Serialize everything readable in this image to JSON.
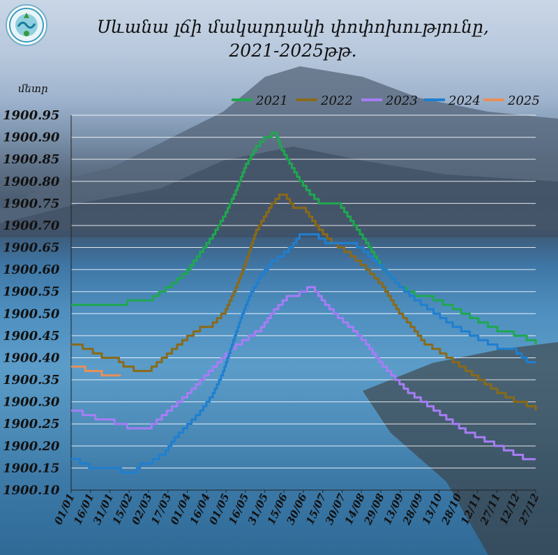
{
  "header": {
    "title_line1": "Սևանա լճի մակարդակի փոփոխությունը,",
    "title_line2": "2021-2025թթ.",
    "logo_icon": "ministry-logo-icon"
  },
  "chart_data": {
    "type": "line",
    "ylabel": "մետր",
    "ylim": [
      1900.1,
      1900.95
    ],
    "yticks": [
      "1900.95",
      "1900.90",
      "1900.85",
      "1900.80",
      "1900.75",
      "1900.70",
      "1900.65",
      "1900.60",
      "1900.55",
      "1900.50",
      "1900.45",
      "1900.40",
      "1900.35",
      "1900.30",
      "1900.25",
      "1900.20",
      "1900.15",
      "1900.10"
    ],
    "xticks": [
      "01/01",
      "16/01",
      "31/01",
      "15/02",
      "02/03",
      "17/03",
      "01/04",
      "16/04",
      "01/05",
      "16/05",
      "31/05",
      "15/06",
      "30/06",
      "15/07",
      "30/07",
      "14/08",
      "29/08",
      "13/09",
      "28/09",
      "13/10",
      "28/10",
      "12/11",
      "27/11",
      "12/12",
      "27/12"
    ],
    "x_day_range": [
      1,
      365
    ],
    "grid": true,
    "legend_position": "top",
    "series": [
      {
        "name": "2021",
        "color": "#1fa84f",
        "points": [
          [
            1,
            1900.52
          ],
          [
            20,
            1900.52
          ],
          [
            38,
            1900.52
          ],
          [
            45,
            1900.53
          ],
          [
            60,
            1900.53
          ],
          [
            65,
            1900.54
          ],
          [
            80,
            1900.57
          ],
          [
            92,
            1900.6
          ],
          [
            102,
            1900.64
          ],
          [
            112,
            1900.68
          ],
          [
            122,
            1900.73
          ],
          [
            130,
            1900.78
          ],
          [
            138,
            1900.84
          ],
          [
            146,
            1900.88
          ],
          [
            152,
            1900.9
          ],
          [
            158,
            1900.91
          ],
          [
            162,
            1900.9
          ],
          [
            166,
            1900.87
          ],
          [
            172,
            1900.84
          ],
          [
            180,
            1900.8
          ],
          [
            188,
            1900.77
          ],
          [
            195,
            1900.75
          ],
          [
            210,
            1900.75
          ],
          [
            220,
            1900.71
          ],
          [
            232,
            1900.66
          ],
          [
            245,
            1900.6
          ],
          [
            258,
            1900.56
          ],
          [
            270,
            1900.54
          ],
          [
            285,
            1900.53
          ],
          [
            300,
            1900.51
          ],
          [
            320,
            1900.48
          ],
          [
            335,
            1900.46
          ],
          [
            348,
            1900.45
          ],
          [
            358,
            1900.44
          ],
          [
            365,
            1900.43
          ]
        ]
      },
      {
        "name": "2022",
        "color": "#8a6a18",
        "points": [
          [
            1,
            1900.43
          ],
          [
            10,
            1900.42
          ],
          [
            18,
            1900.41
          ],
          [
            25,
            1900.4
          ],
          [
            35,
            1900.4
          ],
          [
            42,
            1900.38
          ],
          [
            50,
            1900.37
          ],
          [
            60,
            1900.37
          ],
          [
            68,
            1900.39
          ],
          [
            80,
            1900.42
          ],
          [
            92,
            1900.45
          ],
          [
            102,
            1900.47
          ],
          [
            112,
            1900.48
          ],
          [
            122,
            1900.51
          ],
          [
            130,
            1900.56
          ],
          [
            138,
            1900.62
          ],
          [
            146,
            1900.69
          ],
          [
            152,
            1900.72
          ],
          [
            158,
            1900.75
          ],
          [
            164,
            1900.77
          ],
          [
            170,
            1900.76
          ],
          [
            175,
            1900.74
          ],
          [
            185,
            1900.73
          ],
          [
            195,
            1900.69
          ],
          [
            205,
            1900.66
          ],
          [
            220,
            1900.63
          ],
          [
            232,
            1900.6
          ],
          [
            245,
            1900.56
          ],
          [
            258,
            1900.5
          ],
          [
            270,
            1900.46
          ],
          [
            278,
            1900.43
          ],
          [
            290,
            1900.41
          ],
          [
            305,
            1900.38
          ],
          [
            320,
            1900.35
          ],
          [
            335,
            1900.32
          ],
          [
            348,
            1900.3
          ],
          [
            358,
            1900.29
          ],
          [
            365,
            1900.28
          ]
        ]
      },
      {
        "name": "2023",
        "color": "#a77df5",
        "points": [
          [
            1,
            1900.28
          ],
          [
            10,
            1900.27
          ],
          [
            20,
            1900.26
          ],
          [
            35,
            1900.25
          ],
          [
            45,
            1900.24
          ],
          [
            60,
            1900.24
          ],
          [
            68,
            1900.26
          ],
          [
            80,
            1900.29
          ],
          [
            92,
            1900.32
          ],
          [
            102,
            1900.35
          ],
          [
            112,
            1900.38
          ],
          [
            122,
            1900.41
          ],
          [
            130,
            1900.43
          ],
          [
            140,
            1900.45
          ],
          [
            150,
            1900.47
          ],
          [
            160,
            1900.51
          ],
          [
            170,
            1900.54
          ],
          [
            180,
            1900.55
          ],
          [
            186,
            1900.56
          ],
          [
            192,
            1900.55
          ],
          [
            200,
            1900.52
          ],
          [
            210,
            1900.49
          ],
          [
            222,
            1900.46
          ],
          [
            232,
            1900.43
          ],
          [
            245,
            1900.38
          ],
          [
            255,
            1900.35
          ],
          [
            265,
            1900.32
          ],
          [
            280,
            1900.29
          ],
          [
            295,
            1900.26
          ],
          [
            310,
            1900.23
          ],
          [
            325,
            1900.21
          ],
          [
            340,
            1900.19
          ],
          [
            355,
            1900.17
          ],
          [
            365,
            1900.17
          ]
        ]
      },
      {
        "name": "2024",
        "color": "#1f7fd0",
        "points": [
          [
            1,
            1900.17
          ],
          [
            8,
            1900.16
          ],
          [
            15,
            1900.15
          ],
          [
            30,
            1900.15
          ],
          [
            40,
            1900.14
          ],
          [
            50,
            1900.14
          ],
          [
            55,
            1900.16
          ],
          [
            65,
            1900.17
          ],
          [
            75,
            1900.19
          ],
          [
            82,
            1900.22
          ],
          [
            92,
            1900.25
          ],
          [
            102,
            1900.28
          ],
          [
            112,
            1900.32
          ],
          [
            120,
            1900.37
          ],
          [
            128,
            1900.44
          ],
          [
            135,
            1900.5
          ],
          [
            142,
            1900.55
          ],
          [
            150,
            1900.59
          ],
          [
            158,
            1900.62
          ],
          [
            168,
            1900.64
          ],
          [
            175,
            1900.66
          ],
          [
            180,
            1900.68
          ],
          [
            190,
            1900.68
          ],
          [
            200,
            1900.66
          ],
          [
            220,
            1900.66
          ],
          [
            230,
            1900.64
          ],
          [
            245,
            1900.6
          ],
          [
            258,
            1900.56
          ],
          [
            270,
            1900.53
          ],
          [
            285,
            1900.5
          ],
          [
            300,
            1900.47
          ],
          [
            320,
            1900.44
          ],
          [
            335,
            1900.42
          ],
          [
            350,
            1900.41
          ],
          [
            358,
            1900.39
          ],
          [
            365,
            1900.39
          ]
        ]
      },
      {
        "name": "2025",
        "color": "#e8905a",
        "points": [
          [
            1,
            1900.38
          ],
          [
            12,
            1900.37
          ],
          [
            25,
            1900.36
          ],
          [
            40,
            1900.36
          ]
        ]
      }
    ]
  }
}
